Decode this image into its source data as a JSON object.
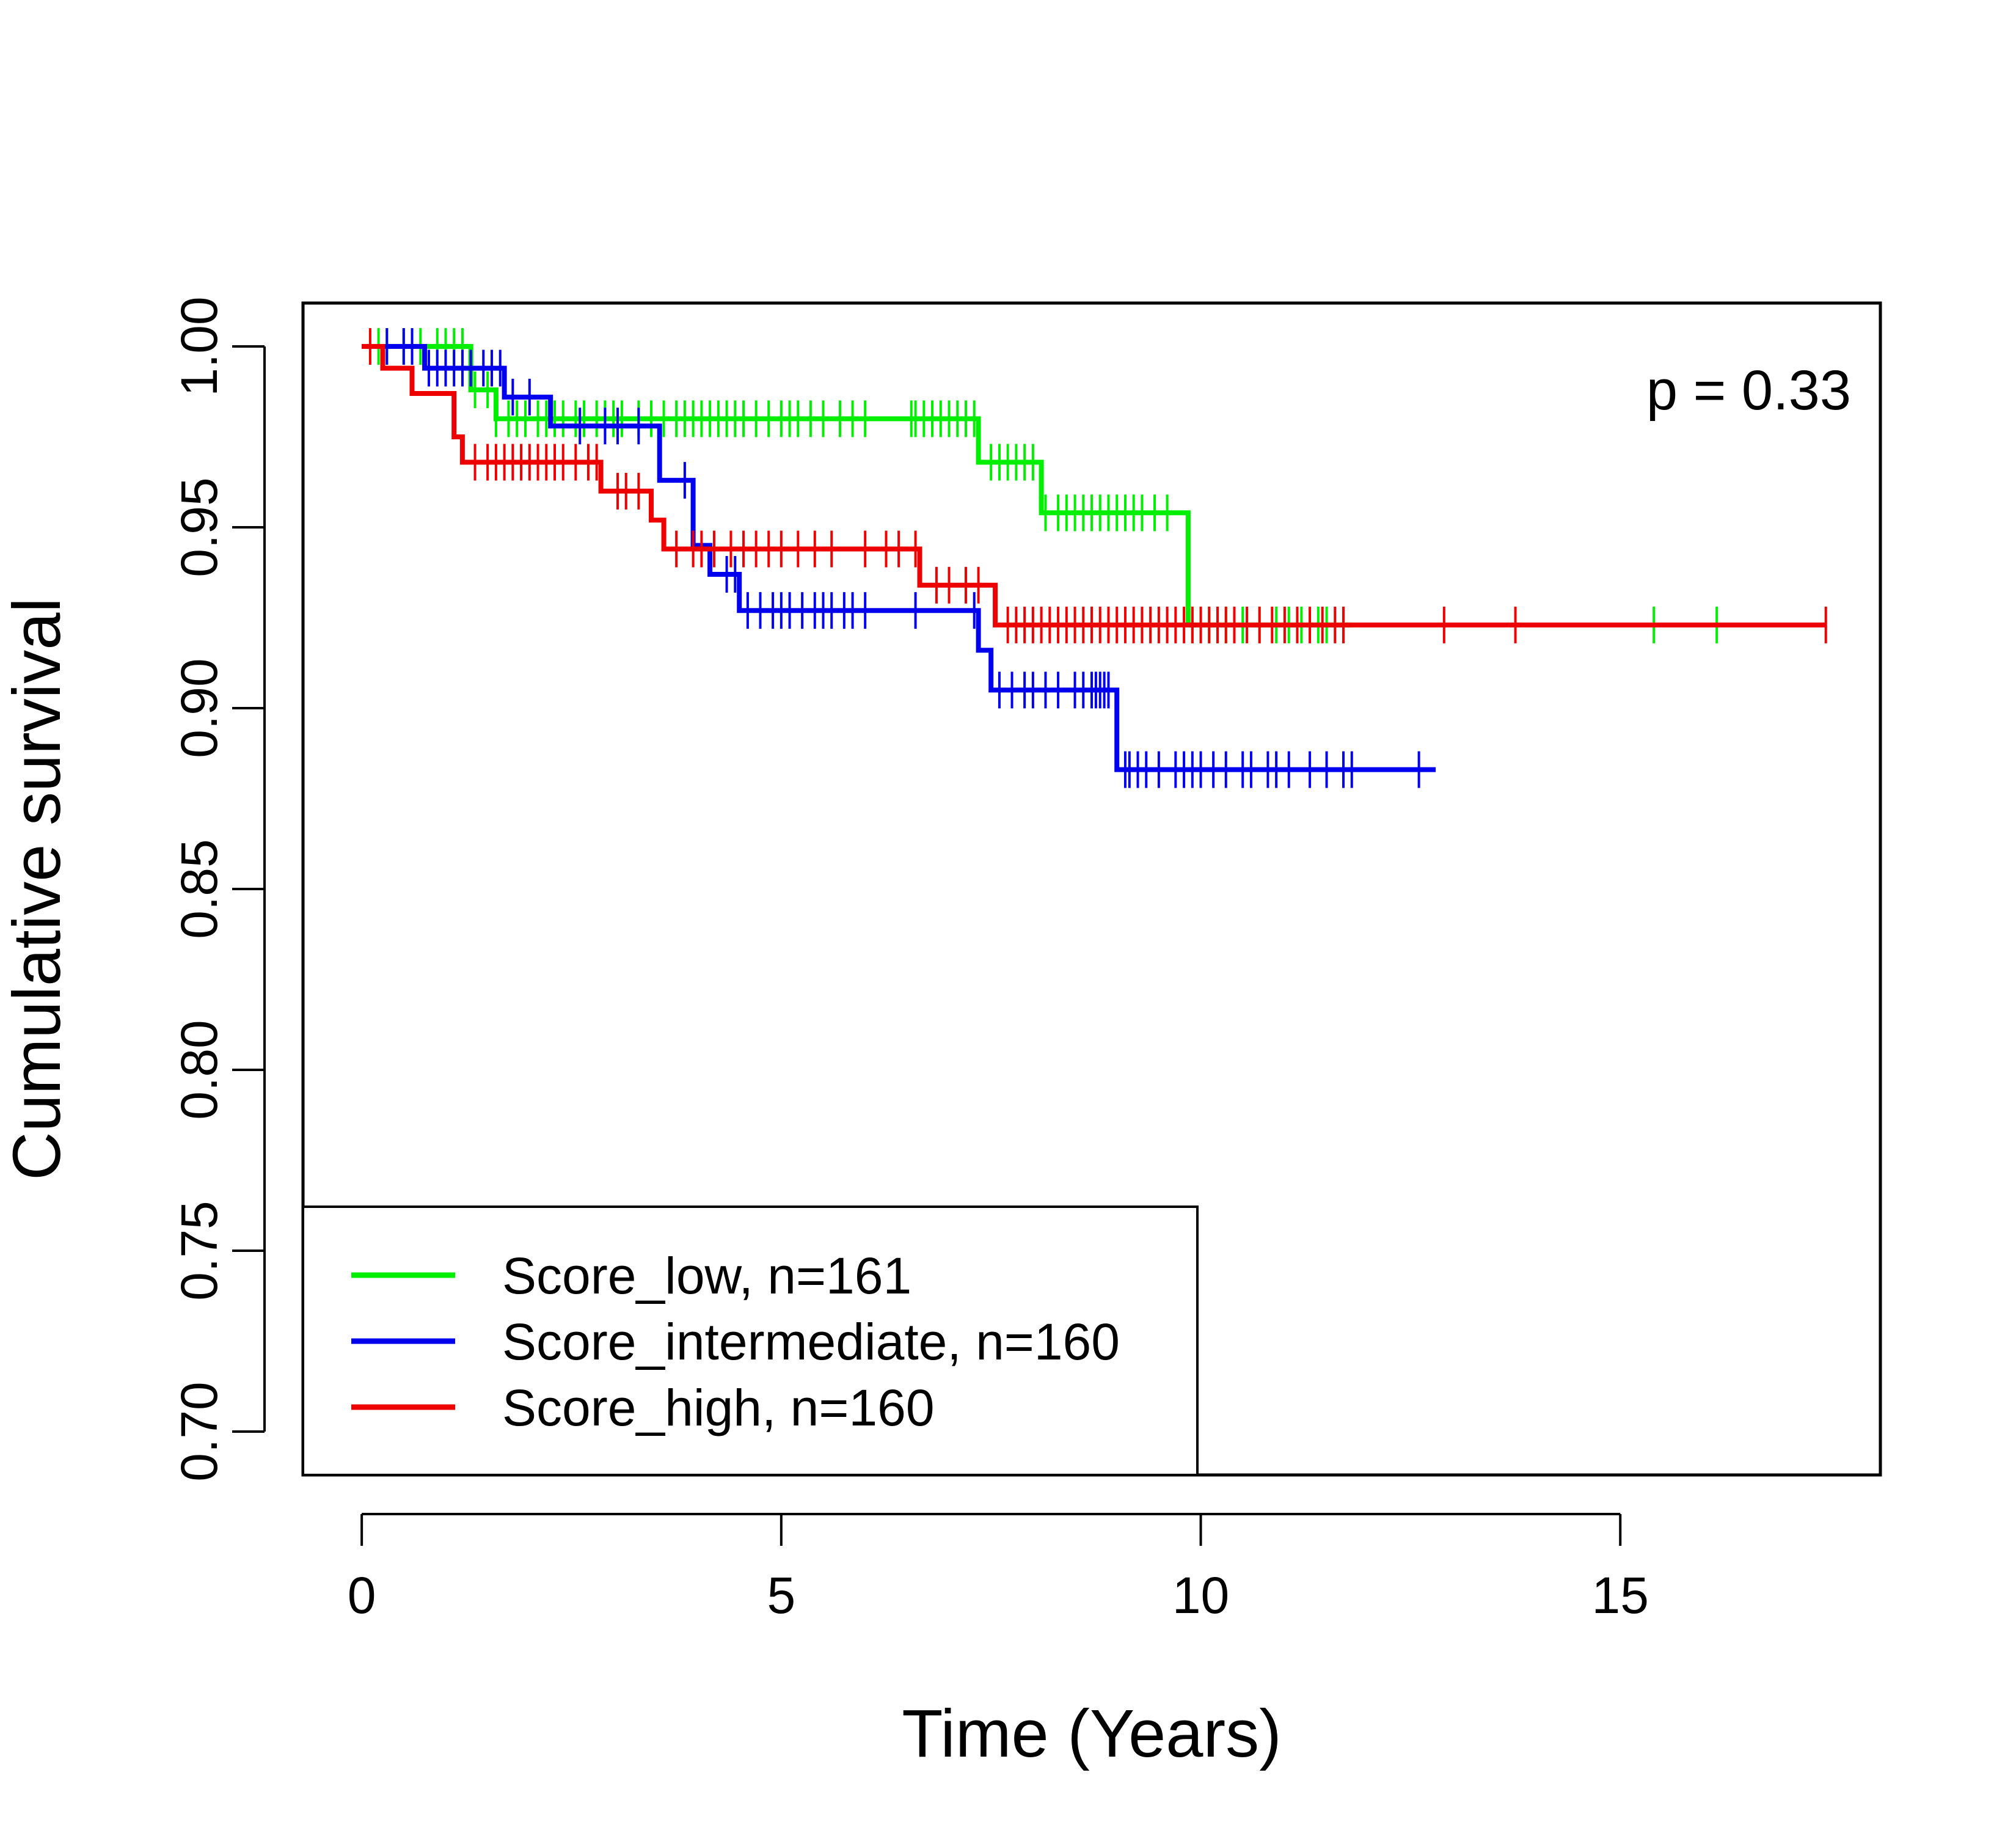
{
  "chart_data": {
    "type": "line",
    "subtype": "kaplan-meier",
    "title": "",
    "xlabel": "Time (Years)",
    "ylabel": "Cumulative survival",
    "xlim": [
      -0.7,
      18.1
    ],
    "ylim": [
      0.688,
      1.012
    ],
    "x_ticks": [
      0,
      5,
      10,
      15
    ],
    "x_tick_labels": [
      "0",
      "5",
      "10",
      "15"
    ],
    "y_ticks": [
      0.7,
      0.75,
      0.8,
      0.85,
      0.9,
      0.95,
      1.0
    ],
    "y_tick_labels": [
      "0.70",
      "0.75",
      "0.80",
      "0.85",
      "0.90",
      "0.95",
      "1.00"
    ],
    "grid": false,
    "legend_position": "bottom-left",
    "annotation": "p = 0.33",
    "series": [
      {
        "name": "Score_low, n=161",
        "color": "#00ee00",
        "steps": [
          [
            0,
            1.0
          ],
          [
            1.3,
            0.988
          ],
          [
            1.6,
            0.98
          ],
          [
            7.35,
            0.968
          ],
          [
            8.1,
            0.954
          ],
          [
            9.85,
            0.923
          ],
          [
            11.8,
            0.923
          ]
        ],
        "censor_times": [
          0.2,
          0.3,
          0.5,
          0.7,
          0.9,
          1.0,
          1.1,
          1.2,
          1.35,
          1.5,
          1.6,
          1.75,
          1.85,
          1.95,
          2.1,
          2.2,
          2.3,
          2.4,
          2.55,
          2.65,
          2.8,
          2.9,
          3.0,
          3.1,
          3.3,
          3.45,
          3.6,
          3.75,
          3.85,
          3.95,
          4.05,
          4.15,
          4.25,
          4.35,
          4.45,
          4.55,
          4.7,
          4.85,
          5.0,
          5.1,
          5.2,
          5.35,
          5.5,
          5.7,
          5.85,
          6.0,
          6.55,
          6.6,
          6.7,
          6.8,
          6.9,
          7.0,
          7.1,
          7.2,
          7.3,
          7.5,
          7.6,
          7.7,
          7.8,
          7.9,
          8.0,
          8.15,
          8.3,
          8.4,
          8.5,
          8.6,
          8.7,
          8.8,
          8.9,
          9.0,
          9.1,
          9.2,
          9.3,
          9.45,
          9.6,
          9.9,
          10.0,
          10.1,
          10.2,
          10.3,
          10.5,
          10.7,
          10.9,
          11.05,
          11.2,
          11.4,
          11.5,
          11.7,
          15.4,
          16.15
        ]
      },
      {
        "name": "Score_intermediate, n=160",
        "color": "#0000ee",
        "steps": [
          [
            0,
            1.0
          ],
          [
            0.75,
            0.994
          ],
          [
            1.7,
            0.986
          ],
          [
            2.25,
            0.978
          ],
          [
            3.55,
            0.963
          ],
          [
            3.95,
            0.945
          ],
          [
            4.15,
            0.937
          ],
          [
            4.5,
            0.927
          ],
          [
            7.35,
            0.916
          ],
          [
            7.5,
            0.905
          ],
          [
            9.0,
            0.883
          ],
          [
            12.8,
            0.883
          ]
        ],
        "censor_times": [
          0.3,
          0.5,
          0.6,
          0.8,
          0.9,
          1.0,
          1.1,
          1.2,
          1.3,
          1.45,
          1.55,
          1.65,
          1.8,
          2.0,
          2.6,
          2.9,
          3.05,
          3.3,
          3.85,
          4.35,
          4.45,
          4.6,
          4.75,
          4.9,
          5.0,
          5.1,
          5.25,
          5.4,
          5.5,
          5.6,
          5.75,
          5.85,
          6.0,
          6.6,
          7.3,
          7.6,
          7.75,
          7.9,
          8.0,
          8.15,
          8.3,
          8.5,
          8.6,
          8.7,
          8.75,
          8.8,
          8.85,
          8.9,
          9.1,
          9.15,
          9.25,
          9.35,
          9.5,
          9.7,
          9.8,
          9.9,
          10.0,
          10.15,
          10.3,
          10.5,
          10.6,
          10.8,
          10.9,
          11.05,
          11.3,
          11.5,
          11.7,
          11.8,
          12.6
        ]
      },
      {
        "name": "Score_high, n=160",
        "color": "#ee0000",
        "steps": [
          [
            0,
            1.0
          ],
          [
            0.25,
            0.994
          ],
          [
            0.6,
            0.987
          ],
          [
            1.1,
            0.975
          ],
          [
            1.2,
            0.968
          ],
          [
            2.85,
            0.96
          ],
          [
            3.45,
            0.952
          ],
          [
            3.6,
            0.944
          ],
          [
            6.65,
            0.934
          ],
          [
            7.55,
            0.923
          ],
          [
            17.45,
            0.923
          ]
        ],
        "censor_times": [
          0.1,
          1.35,
          1.5,
          1.6,
          1.7,
          1.8,
          1.9,
          2.0,
          2.1,
          2.2,
          2.3,
          2.4,
          2.55,
          2.7,
          2.8,
          3.05,
          3.15,
          3.3,
          3.75,
          3.95,
          4.05,
          4.2,
          4.4,
          4.55,
          4.7,
          4.85,
          5.0,
          5.2,
          5.4,
          5.6,
          6.0,
          6.25,
          6.4,
          6.6,
          6.85,
          7.0,
          7.2,
          7.35,
          7.7,
          7.8,
          7.9,
          8.0,
          8.1,
          8.2,
          8.3,
          8.4,
          8.5,
          8.6,
          8.7,
          8.8,
          8.9,
          9.0,
          9.1,
          9.2,
          9.3,
          9.4,
          9.5,
          9.6,
          9.7,
          9.8,
          9.9,
          10.0,
          10.1,
          10.2,
          10.3,
          10.4,
          10.55,
          10.7,
          10.85,
          11.0,
          11.15,
          11.3,
          11.45,
          11.6,
          11.7,
          12.9,
          13.75,
          17.45
        ]
      }
    ]
  }
}
